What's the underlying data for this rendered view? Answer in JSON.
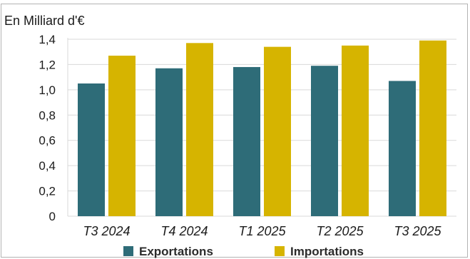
{
  "chart_data": {
    "type": "bar",
    "title": "",
    "ylabel": "En Milliard d'€",
    "xlabel": "",
    "categories": [
      "T3 2024",
      "T4 2024",
      "T1 2025",
      "T2 2025",
      "T3 2025"
    ],
    "series": [
      {
        "name": "Exportations",
        "color": "#2e6c78",
        "values": [
          1.05,
          1.17,
          1.18,
          1.19,
          1.07
        ]
      },
      {
        "name": "Importations",
        "color": "#d6b400",
        "values": [
          1.27,
          1.37,
          1.34,
          1.35,
          1.39
        ]
      }
    ],
    "ylim": [
      0,
      1.4
    ],
    "yticks": [
      "0",
      "0,2",
      "0,4",
      "0,6",
      "0,8",
      "1,0",
      "1,2",
      "1,4"
    ],
    "grid": true,
    "legend": "bottom"
  }
}
